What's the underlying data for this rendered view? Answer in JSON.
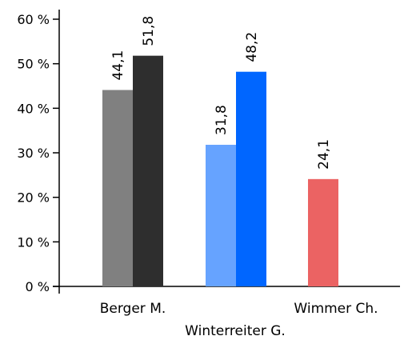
{
  "chart_data": {
    "type": "bar",
    "title": "",
    "xlabel": "",
    "ylabel": "",
    "ylim": [
      0,
      60
    ],
    "y_ticks": [
      0,
      10,
      20,
      30,
      40,
      50,
      60
    ],
    "y_tick_suffix": " %",
    "grid": false,
    "legend": "none",
    "categories": [
      "Berger M.",
      "Winterreiter G.",
      "Wimmer Ch."
    ],
    "bars": [
      {
        "category": 0,
        "value": 44.1,
        "label": "44,1",
        "color": "#808080"
      },
      {
        "category": 0,
        "value": 51.8,
        "label": "51,8",
        "color": "#2e2e2e"
      },
      {
        "category": 1,
        "value": 31.8,
        "label": "31,8",
        "color": "#66a3ff"
      },
      {
        "category": 1,
        "value": 48.2,
        "label": "48,2",
        "color": "#0066ff"
      },
      {
        "category": 2,
        "value": 24.1,
        "label": "24,1",
        "color": "#eb6363"
      }
    ]
  }
}
